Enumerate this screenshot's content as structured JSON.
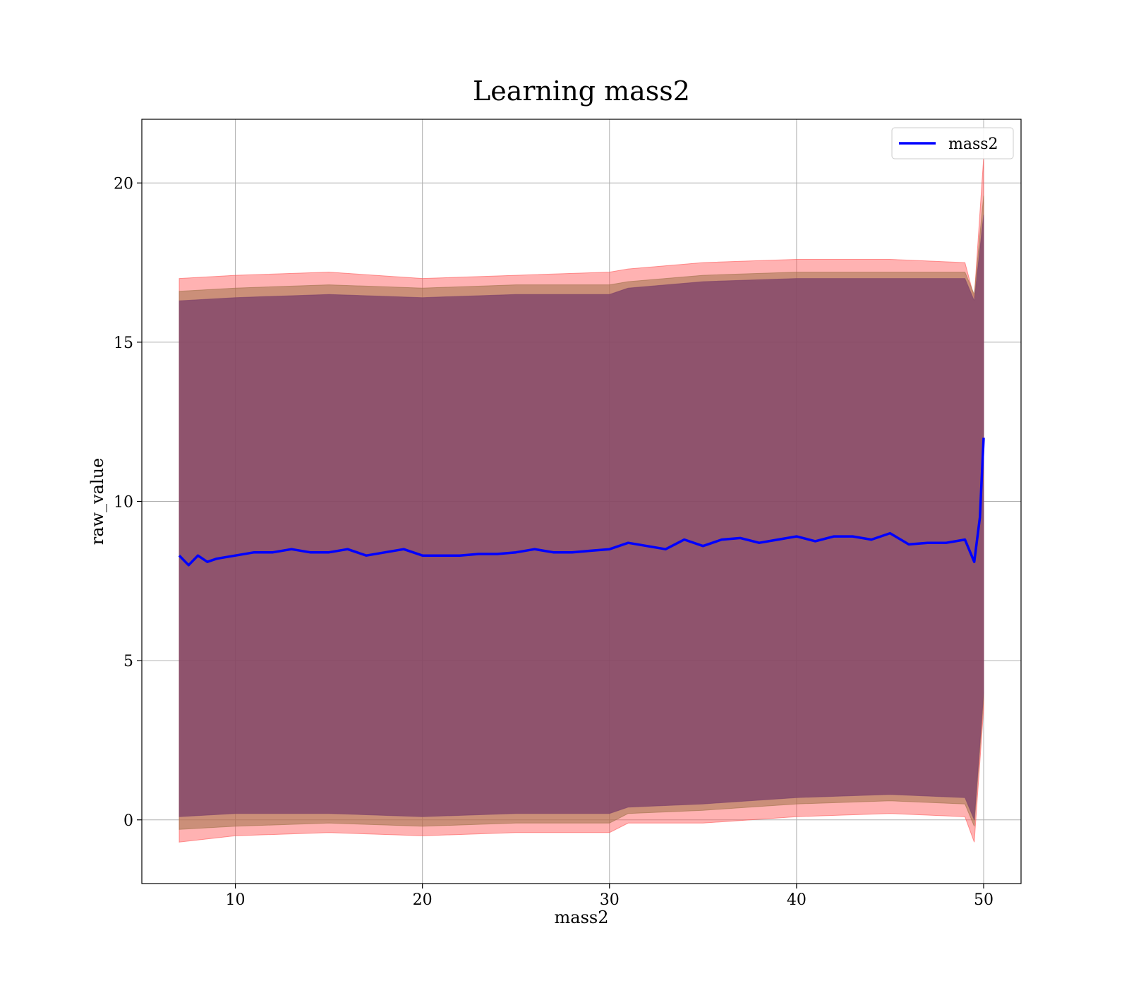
{
  "chart_data": {
    "type": "line",
    "title": "Learning mass2",
    "xlabel": "mass2",
    "ylabel": "raw_value",
    "xlim": [
      5,
      52
    ],
    "ylim": [
      -2,
      22
    ],
    "x_ticks": [
      10,
      20,
      30,
      40,
      50
    ],
    "y_ticks": [
      0,
      5,
      10,
      15,
      20
    ],
    "grid": true,
    "legend_position": "top-right",
    "colors": {
      "line": "#0000ff",
      "band_3sigma": "#ff5555",
      "band_2sigma": "#a0724a",
      "band_1sigma": "#7b3f6a",
      "grid": "#b0b0b0"
    },
    "series": [
      {
        "name": "mass2",
        "type": "line",
        "x": [
          7,
          7.5,
          8,
          8.5,
          9,
          10,
          11,
          12,
          13,
          14,
          15,
          16,
          17,
          18,
          19,
          20,
          21,
          22,
          23,
          24,
          25,
          26,
          27,
          28,
          29,
          30,
          31,
          32,
          33,
          34,
          35,
          36,
          37,
          38,
          39,
          40,
          41,
          42,
          43,
          44,
          45,
          46,
          47,
          48,
          49,
          49.5,
          49.8,
          50
        ],
        "y": [
          8.3,
          8.0,
          8.3,
          8.1,
          8.2,
          8.3,
          8.4,
          8.4,
          8.5,
          8.4,
          8.4,
          8.5,
          8.3,
          8.4,
          8.5,
          8.3,
          8.3,
          8.3,
          8.35,
          8.35,
          8.4,
          8.5,
          8.4,
          8.4,
          8.45,
          8.5,
          8.7,
          8.6,
          8.5,
          8.8,
          8.6,
          8.8,
          8.85,
          8.7,
          8.8,
          8.9,
          8.75,
          8.9,
          8.9,
          8.8,
          9.0,
          8.65,
          8.7,
          8.7,
          8.8,
          8.1,
          9.5,
          12.0
        ]
      }
    ],
    "bands": [
      {
        "level": "3sigma",
        "x": [
          7,
          10,
          15,
          20,
          25,
          30,
          31,
          35,
          40,
          45,
          49,
          49.5,
          50
        ],
        "upper": [
          17.0,
          17.1,
          17.2,
          17.0,
          17.1,
          17.2,
          17.3,
          17.5,
          17.6,
          17.6,
          17.5,
          16.4,
          20.8
        ],
        "lower": [
          -0.7,
          -0.5,
          -0.4,
          -0.5,
          -0.4,
          -0.4,
          -0.1,
          -0.1,
          0.1,
          0.2,
          0.1,
          -0.7,
          3.5
        ]
      },
      {
        "level": "2sigma",
        "x": [
          7,
          10,
          15,
          20,
          25,
          30,
          31,
          35,
          40,
          45,
          49,
          49.5,
          50
        ],
        "upper": [
          16.6,
          16.7,
          16.8,
          16.7,
          16.8,
          16.8,
          16.9,
          17.1,
          17.2,
          17.2,
          17.2,
          16.5,
          19.6
        ],
        "lower": [
          -0.3,
          -0.2,
          -0.1,
          -0.2,
          -0.1,
          -0.1,
          0.2,
          0.3,
          0.5,
          0.6,
          0.5,
          -0.2,
          3.8
        ]
      },
      {
        "level": "1sigma",
        "x": [
          7,
          10,
          15,
          20,
          25,
          30,
          31,
          35,
          40,
          45,
          49,
          49.5,
          50
        ],
        "upper": [
          16.3,
          16.4,
          16.5,
          16.4,
          16.5,
          16.5,
          16.7,
          16.9,
          17.0,
          17.0,
          17.0,
          16.3,
          19.0
        ],
        "lower": [
          0.1,
          0.2,
          0.2,
          0.1,
          0.2,
          0.2,
          0.4,
          0.5,
          0.7,
          0.8,
          0.7,
          0.0,
          4.0
        ]
      }
    ]
  }
}
